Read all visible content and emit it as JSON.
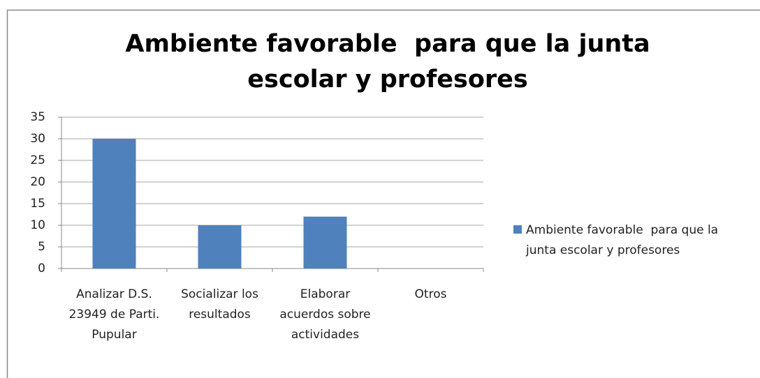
{
  "chart_data": {
    "type": "bar",
    "title": "Ambiente favorable  para que la junta escolar y profesores",
    "categories": [
      "Analizar D.S. 23949 de Parti. Pupular",
      "Socializar los resultados",
      "Elaborar acuerdos sobre actividades",
      "Otros"
    ],
    "series": [
      {
        "name": "Ambiente favorable  para que la junta escolar y profesores",
        "color": "#4f81bd",
        "values": [
          30,
          10,
          12,
          0
        ]
      }
    ],
    "ylim": [
      0,
      35
    ],
    "yticks": [
      0,
      5,
      10,
      15,
      20,
      25,
      30,
      35
    ],
    "grid": true,
    "legend": "right"
  }
}
